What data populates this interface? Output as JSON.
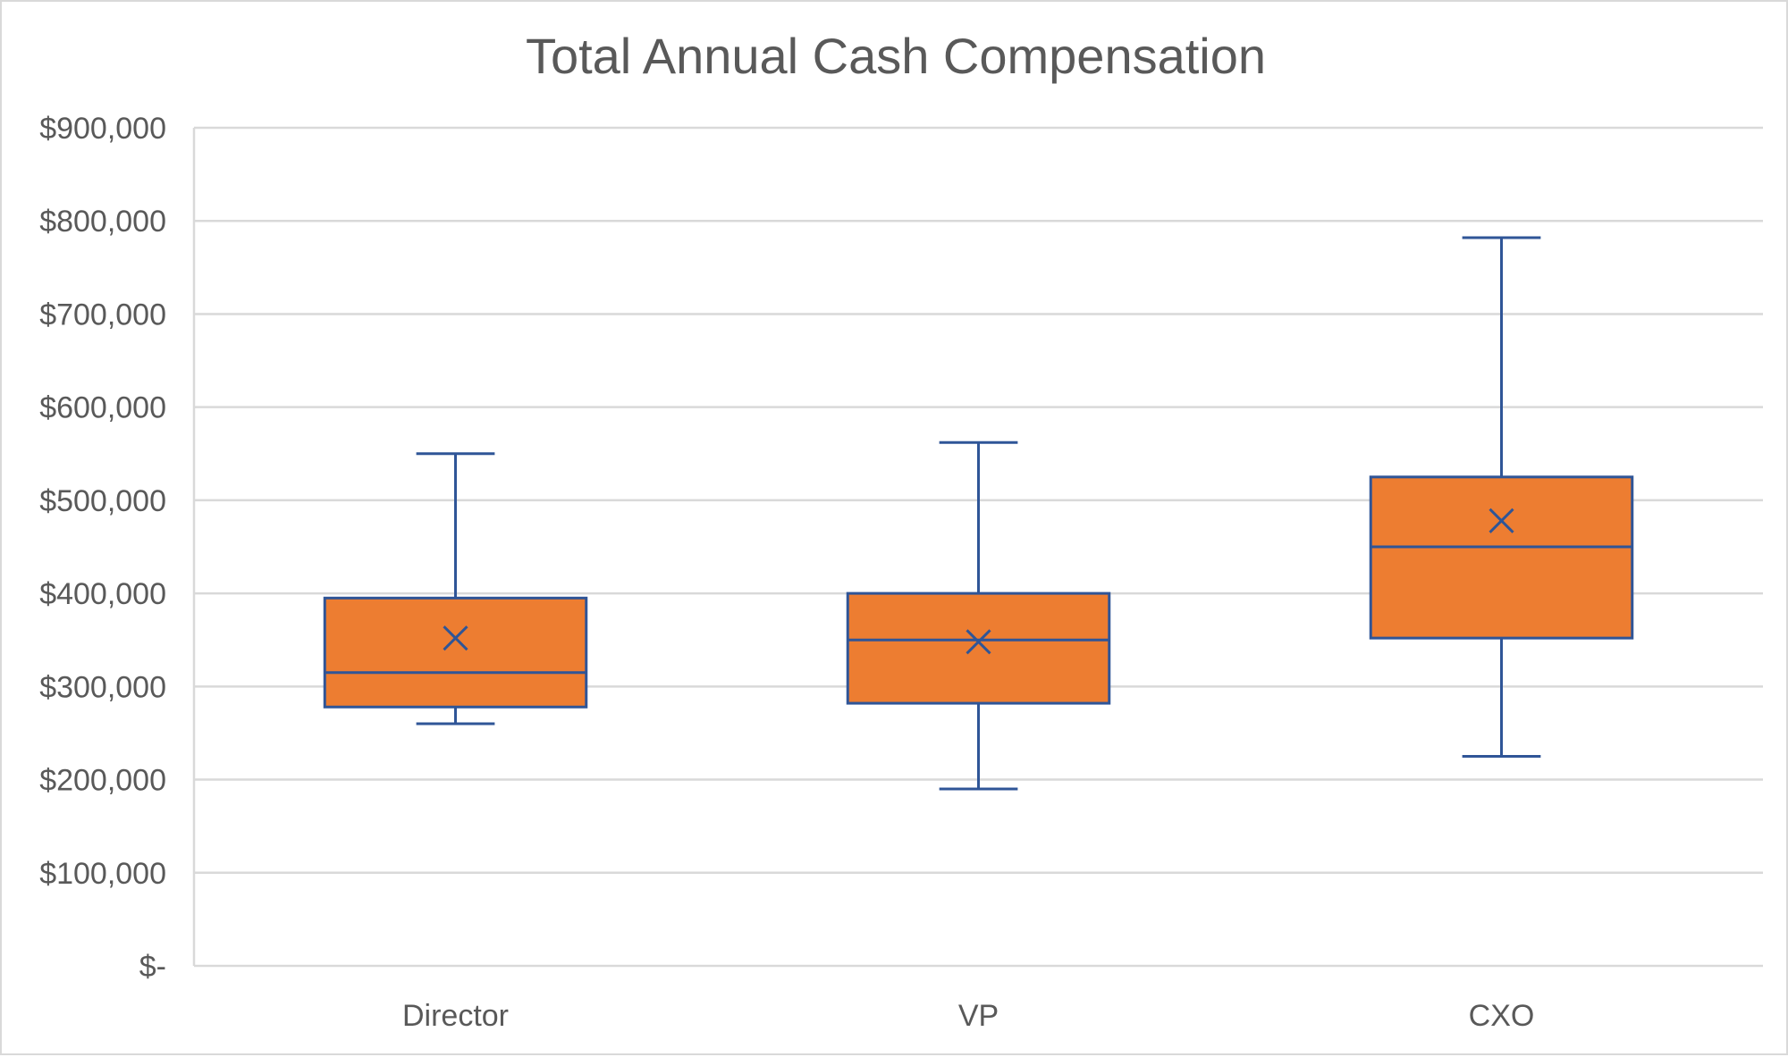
{
  "chart_data": {
    "type": "box",
    "title": "Total Annual Cash Compensation",
    "xlabel": "",
    "ylabel": "",
    "ylim": [
      0,
      900000
    ],
    "y_ticks": [
      0,
      100000,
      200000,
      300000,
      400000,
      500000,
      600000,
      700000,
      800000,
      900000
    ],
    "y_tick_labels": [
      "$-",
      "$100,000",
      "$200,000",
      "$300,000",
      "$400,000",
      "$500,000",
      "$600,000",
      "$700,000",
      "$800,000",
      "$900,000"
    ],
    "grid": true,
    "legend": "none",
    "categories": [
      "Director",
      "VP",
      "CXO"
    ],
    "boxes": [
      {
        "category": "Director",
        "min": 260000,
        "q1": 278000,
        "median": 315000,
        "q3": 395000,
        "max": 550000,
        "mean": 352000
      },
      {
        "category": "VP",
        "min": 190000,
        "q1": 282000,
        "median": 350000,
        "q3": 400000,
        "max": 562000,
        "mean": 348000
      },
      {
        "category": "CXO",
        "min": 225000,
        "q1": 352000,
        "median": 450000,
        "q3": 525000,
        "max": 782000,
        "mean": 478000
      }
    ],
    "colors": {
      "box_fill": "#ED7D31",
      "box_stroke": "#2F5597",
      "grid": "#d9d9d9",
      "text": "#595959"
    }
  }
}
